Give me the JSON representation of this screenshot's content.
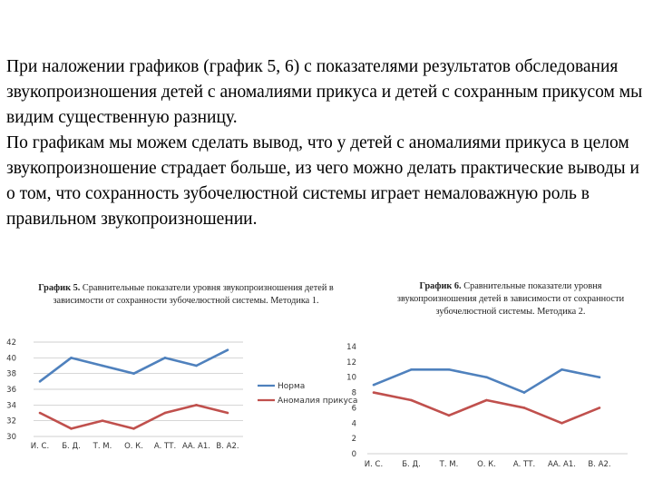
{
  "intro": {
    "paragraph1": "При наложении графиков (график 5, 6) с показателями результатов обследования звукопроизношения детей с аномалиями прикуса и детей с сохранным прикусом мы видим существенную разницу.",
    "paragraph2": "По графикам мы можем сделать вывод, что у детей с аномалиями прикуса в целом звукопроизношение страдает больше, из чего можно делать практические выводы и о том, что сохранность зубочелюстной системы играет немаловажную роль в правильном звукопроизношении."
  },
  "colors": {
    "norma": "#4f81bd",
    "anomaly": "#c0504d",
    "grid": "#bfbfbf"
  },
  "chart_data": [
    {
      "type": "line",
      "title_bold": "График 5.",
      "title_rest": "Сравнительные показатели уровня звукопроизношения детей в зависимости от сохранности зубочелюстной системы. Методика 1.",
      "categories": [
        "И. С.",
        "Б. Д.",
        "Т. М.",
        "О. К.",
        "А. ТТ.",
        "АА. А1.",
        "В. А2."
      ],
      "ylim": [
        30,
        42
      ],
      "yticks": [
        30,
        32,
        34,
        36,
        38,
        40,
        42
      ],
      "series": [
        {
          "name": "Норма",
          "values": [
            37,
            40,
            39,
            38,
            40,
            39,
            41
          ]
        },
        {
          "name": "Аномалия прикуса",
          "values": [
            33,
            31,
            32,
            31,
            33,
            34,
            33
          ]
        }
      ],
      "legend_position": "right"
    },
    {
      "type": "line",
      "title_bold": "График 6.",
      "title_rest": "Сравнительные показатели уровня звукопроизношения детей в зависимости от сохранности зубочелюстной системы. Методика 2.",
      "categories": [
        "И. С.",
        "Б. Д.",
        "Т. М.",
        "О. К.",
        "А. ТТ.",
        "АА. А1.",
        "В. А2."
      ],
      "ylim": [
        0,
        14
      ],
      "yticks": [
        0,
        2,
        4,
        6,
        8,
        10,
        12,
        14
      ],
      "series": [
        {
          "name": "Норма",
          "values": [
            9,
            11,
            11,
            10,
            8,
            11,
            10
          ]
        },
        {
          "name": "Аномалия прикуса",
          "values": [
            8,
            7,
            5,
            7,
            6,
            4,
            6
          ]
        }
      ]
    }
  ]
}
